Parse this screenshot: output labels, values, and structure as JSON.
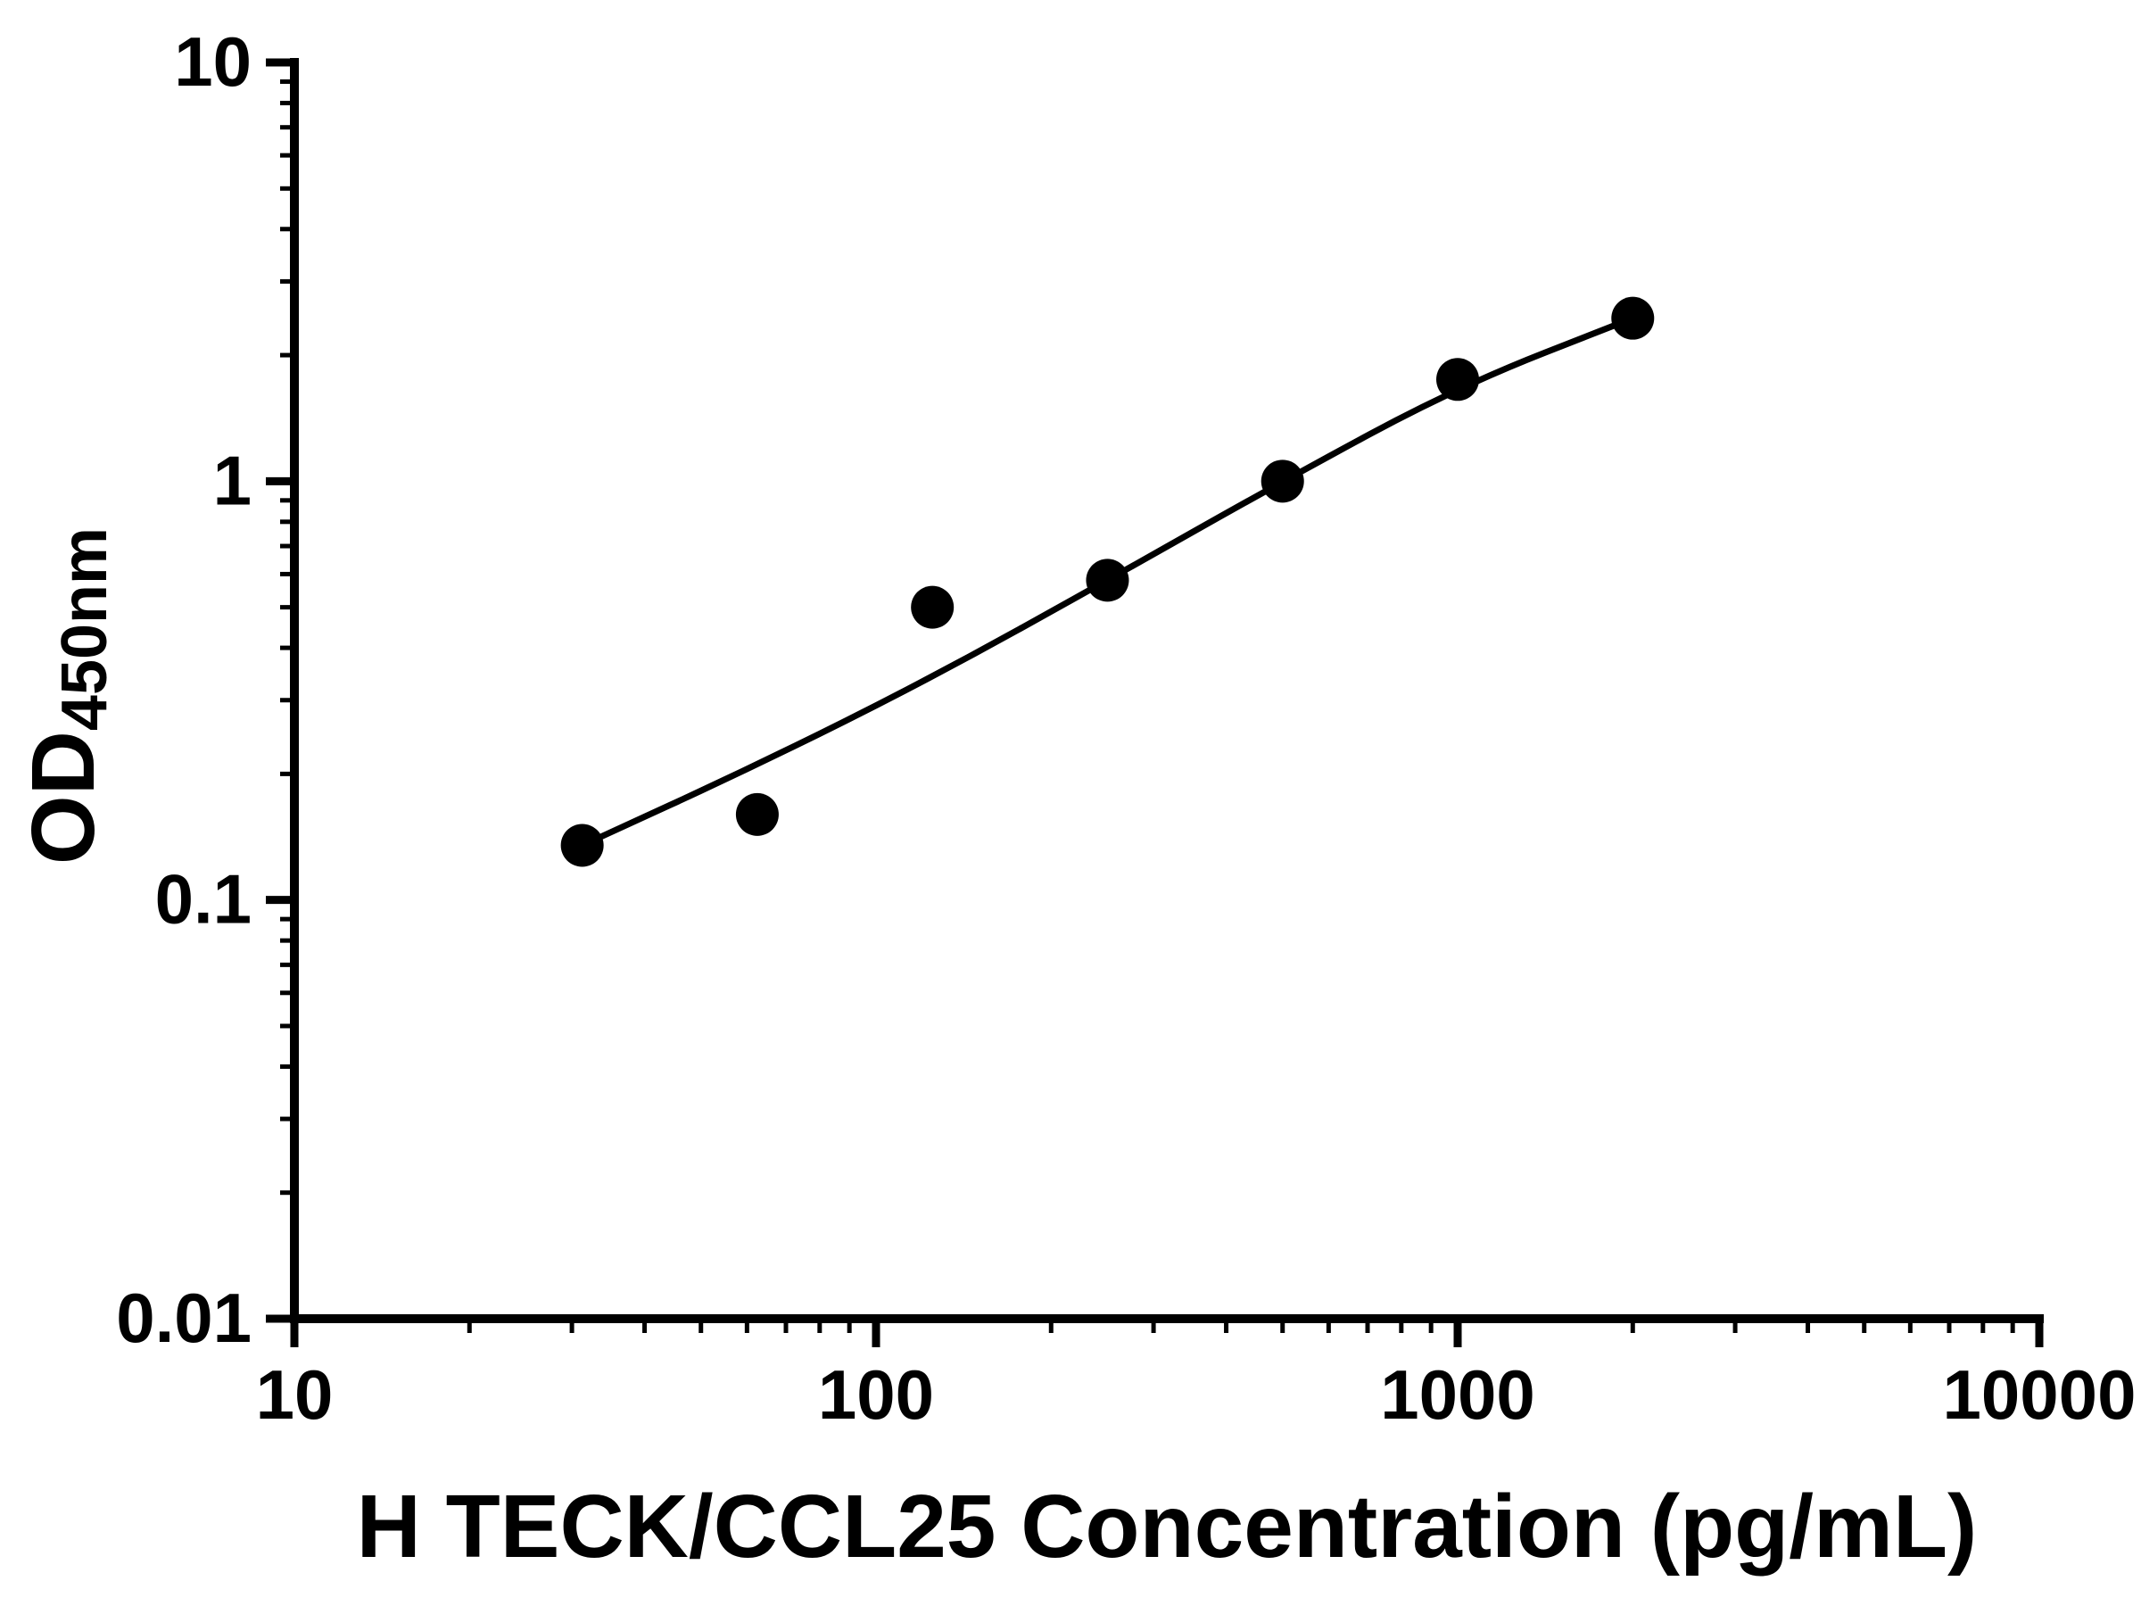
{
  "chart_data": {
    "type": "scatter",
    "title": "",
    "xlabel": "H TECK/CCL25 Concentration (pg/mL)",
    "ylabel_main": "OD",
    "ylabel_sub": "450nm",
    "x_scale": "log",
    "y_scale": "log",
    "xlim": [
      10,
      10000
    ],
    "ylim": [
      0.01,
      10
    ],
    "x_ticks": [
      10,
      100,
      1000,
      10000
    ],
    "x_tick_labels": [
      "10",
      "100",
      "1000",
      "10000"
    ],
    "y_ticks": [
      0.01,
      0.1,
      1,
      10
    ],
    "y_tick_labels": [
      "0.01",
      "0.1",
      "1",
      "10"
    ],
    "grid": false,
    "legend": "none",
    "marker_color": "#000000",
    "line_color": "#000000",
    "points": [
      {
        "x": 31.25,
        "y": 0.135
      },
      {
        "x": 62.5,
        "y": 0.16
      },
      {
        "x": 125,
        "y": 0.5
      },
      {
        "x": 250,
        "y": 0.58
      },
      {
        "x": 500,
        "y": 1.0
      },
      {
        "x": 1000,
        "y": 1.75
      },
      {
        "x": 2000,
        "y": 2.45
      }
    ],
    "fit_line": [
      {
        "x": 31.25,
        "y": 0.135
      },
      {
        "x": 62.5,
        "y": 0.21
      },
      {
        "x": 125,
        "y": 0.34
      },
      {
        "x": 250,
        "y": 0.58
      },
      {
        "x": 500,
        "y": 1.0
      },
      {
        "x": 1000,
        "y": 1.68
      },
      {
        "x": 2000,
        "y": 2.45
      }
    ]
  }
}
